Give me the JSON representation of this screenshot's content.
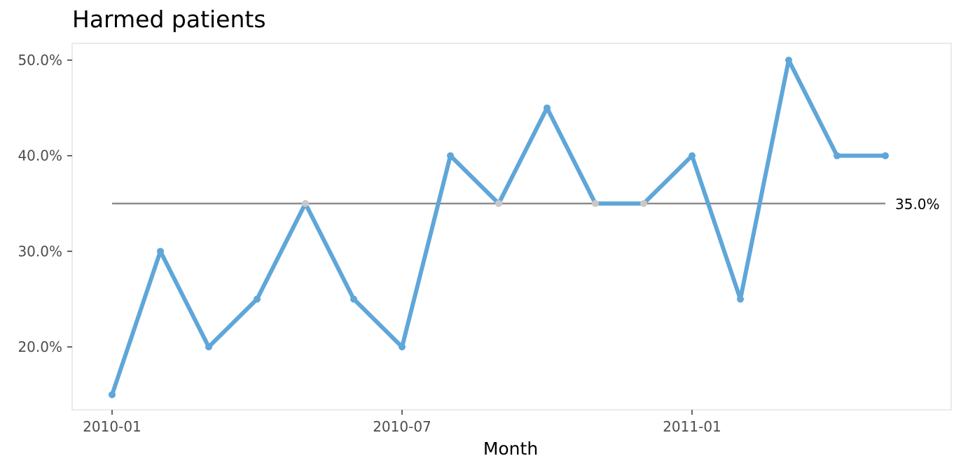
{
  "chart_data": {
    "type": "line",
    "title": "Harmed patients",
    "xlabel": "Month",
    "ylabel": "",
    "x": [
      "2010-01",
      "2010-02",
      "2010-03",
      "2010-04",
      "2010-05",
      "2010-06",
      "2010-07",
      "2010-08",
      "2010-09",
      "2010-10",
      "2010-11",
      "2010-12",
      "2011-01",
      "2011-02",
      "2011-03",
      "2011-04",
      "2011-05"
    ],
    "series": [
      {
        "values": [
          15,
          30,
          20,
          25,
          35,
          25,
          20,
          40,
          35,
          45,
          35,
          35,
          40,
          25,
          50,
          40,
          40
        ],
        "color": "#5fa6d9"
      }
    ],
    "centerline": {
      "value": 35,
      "label": "35.0%",
      "color": "#8c8c8c"
    },
    "on_centerline_point_color": "#c8c8c8",
    "x_ticks": [
      "2010-01",
      "2010-07",
      "2011-01"
    ],
    "y_ticks": [
      "20.0%",
      "30.0%",
      "40.0%",
      "50.0%"
    ],
    "y_tick_values": [
      20,
      30,
      40,
      50
    ],
    "ylim": [
      14,
      52
    ],
    "grid": false,
    "legend": "none"
  }
}
